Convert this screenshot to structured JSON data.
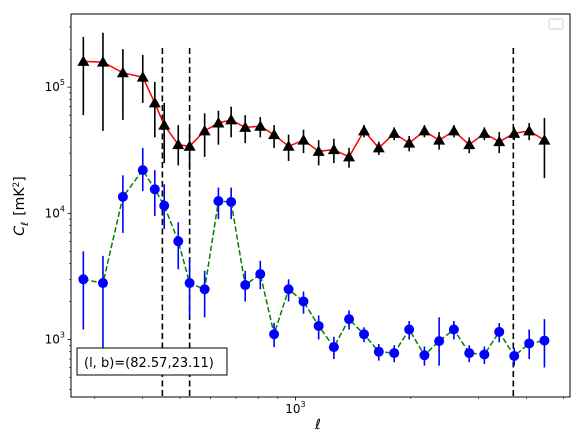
{
  "chart_data": {
    "type": "line",
    "xlabel": "ℓ",
    "ylabel_main": "C",
    "ylabel_sub": "ℓ",
    "ylabel_unit": "[mK",
    "ylabel_unit_sup": "2",
    "ylabel_unit_close": "]",
    "xscale": "log",
    "yscale": "log",
    "xlim": [
      260,
      5200
    ],
    "ylim": [
      350,
      380000
    ],
    "x_ticks": [
      {
        "value": 1000,
        "base": "10",
        "exp": "3"
      }
    ],
    "y_ticks": [
      {
        "value": 1000,
        "base": "10",
        "exp": "3"
      },
      {
        "value": 10000,
        "base": "10",
        "exp": "4"
      },
      {
        "value": 100000,
        "base": "10",
        "exp": "5"
      }
    ],
    "vlines": [
      450,
      530,
      3700
    ],
    "legend": "top-right, empty",
    "annotation": "(l, b)=(82.57,23.11)",
    "series": [
      {
        "marker": "triangle",
        "color": "#000000",
        "line_color": "#ff0000",
        "line_style": "solid",
        "x": [
          280,
          315,
          355,
          400,
          430,
          455,
          495,
          530,
          580,
          630,
          680,
          740,
          810,
          880,
          960,
          1050,
          1150,
          1260,
          1380,
          1510,
          1650,
          1810,
          1980,
          2170,
          2370,
          2590,
          2840,
          3110,
          3400,
          3720,
          4070,
          4460
        ],
        "y": [
          160000,
          158000,
          130000,
          120000,
          75000,
          50000,
          35000,
          34000,
          45000,
          52000,
          55000,
          48000,
          49000,
          42000,
          34000,
          38000,
          31000,
          32000,
          28000,
          45000,
          33000,
          43000,
          36000,
          45000,
          38000,
          45000,
          35000,
          43000,
          37000,
          43000,
          45000,
          38000
        ],
        "y_low": [
          60000,
          45000,
          55000,
          75000,
          40000,
          25000,
          24000,
          22000,
          28000,
          35000,
          40000,
          36000,
          40000,
          33000,
          26000,
          30000,
          24000,
          25000,
          23000,
          40000,
          29000,
          38000,
          31000,
          40000,
          32000,
          40000,
          30000,
          38000,
          30000,
          38000,
          38000,
          19000
        ],
        "y_high": [
          250000,
          270000,
          200000,
          180000,
          110000,
          75000,
          50000,
          48000,
          62000,
          65000,
          70000,
          60000,
          58000,
          50000,
          42000,
          46000,
          38000,
          39000,
          33000,
          50000,
          37000,
          48000,
          41000,
          50000,
          44000,
          50000,
          40000,
          48000,
          44000,
          48000,
          52000,
          57000
        ]
      },
      {
        "marker": "circle",
        "color": "#0000ff",
        "line_color": "#008000",
        "line_style": "dashed",
        "x": [
          280,
          315,
          355,
          400,
          430,
          455,
          495,
          530,
          580,
          630,
          680,
          740,
          810,
          880,
          960,
          1050,
          1150,
          1260,
          1380,
          1510,
          1650,
          1810,
          1980,
          2170,
          2370,
          2590,
          2840,
          3110,
          3400,
          3720,
          4070,
          4460
        ],
        "y": [
          3000,
          2800,
          13500,
          22000,
          15500,
          11500,
          6000,
          2800,
          2500,
          12500,
          12300,
          2700,
          3300,
          1100,
          2500,
          2000,
          1280,
          870,
          1450,
          1100,
          800,
          780,
          1200,
          750,
          970,
          1200,
          780,
          760,
          1150,
          740,
          930,
          980
        ],
        "y_low": [
          1200,
          800,
          7000,
          15000,
          9500,
          7500,
          3600,
          1500,
          1500,
          9000,
          9000,
          2000,
          2500,
          870,
          2000,
          1600,
          1000,
          700,
          1200,
          950,
          680,
          660,
          1000,
          620,
          620,
          1000,
          660,
          640,
          950,
          620,
          700,
          600
        ],
        "y_high": [
          5000,
          4600,
          20000,
          33000,
          22000,
          17000,
          8500,
          4300,
          3500,
          16000,
          16000,
          3500,
          4200,
          1350,
          3000,
          2400,
          1550,
          1050,
          1700,
          1250,
          920,
          900,
          1400,
          880,
          1500,
          1400,
          900,
          880,
          1350,
          860,
          1200,
          1450
        ]
      }
    ]
  }
}
